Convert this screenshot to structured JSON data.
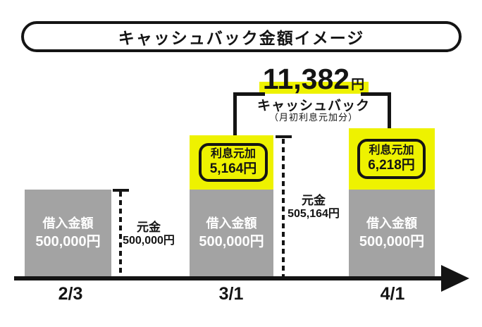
{
  "title": "キャッシュバック金額イメージ",
  "annotation": {
    "amount": "11,382",
    "unit": "円",
    "label": "キャッシュバック",
    "note": "（月初利息元加分）"
  },
  "bars": [
    {
      "date": "2/3",
      "label_line1": "借入金額",
      "label_line2": "500,000円"
    },
    {
      "date": "3/1",
      "label_line1": "借入金額",
      "label_line2": "500,000円",
      "interest_line1": "利息元加",
      "interest_line2": "5,164円"
    },
    {
      "date": "4/1",
      "label_line1": "借入金額",
      "label_line2": "500,000円",
      "interest_line1": "利息元加",
      "interest_line2": "6,218円"
    }
  ],
  "principal_markers": [
    {
      "line1": "元金",
      "line2": "500,000円"
    },
    {
      "line1": "元金",
      "line2": "505,164円"
    }
  ],
  "colors": {
    "highlight_yellow": "#eef200",
    "bar_gray": "#a3a3a3",
    "ink_black": "#141414"
  },
  "chart_data": {
    "type": "bar",
    "title": "キャッシュバック金額イメージ",
    "categories": [
      "2/3",
      "3/1",
      "4/1"
    ],
    "series": [
      {
        "name": "借入金額",
        "values": [
          500000,
          500000,
          500000
        ]
      },
      {
        "name": "利息元加",
        "values": [
          0,
          5164,
          6218
        ]
      }
    ],
    "annotations": {
      "cashback_total_yen": 11382,
      "cashback_label": "キャッシュバック",
      "cashback_note": "（月初利息元加分）",
      "principal_marker_2_3": "元金 500,000円",
      "principal_marker_3_1": "元金 505,164円"
    },
    "legend": false,
    "grid": false,
    "axis": "timeline with right arrow"
  }
}
